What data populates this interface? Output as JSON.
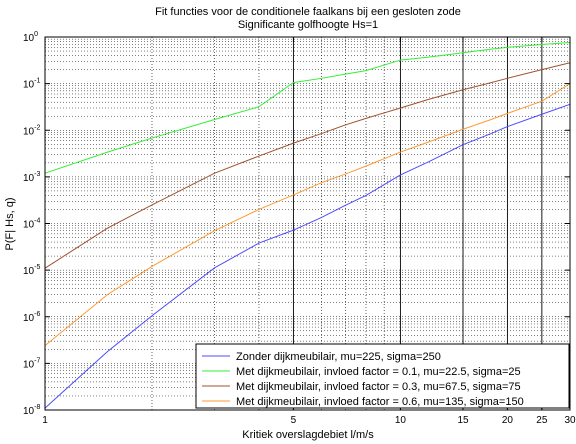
{
  "chart_data": {
    "type": "line",
    "title": "Fit functies voor de conditionele faalkans bij een gesloten zode",
    "subtitle": "Significante golfhoogte Hs=1",
    "xlabel": "Kritiek overslagdebiet l/m/s",
    "ylabel": "P(F| Hs, q)",
    "x_scale": "log",
    "y_scale": "log",
    "xlim": [
      1,
      30
    ],
    "ylim": [
      1e-08,
      1
    ],
    "x_ticks": [
      1,
      5,
      10,
      15,
      20,
      25,
      30
    ],
    "x_tick_labels": [
      "1",
      "5",
      "10",
      "15",
      "20",
      "25",
      "30"
    ],
    "y_ticks": [
      1e-08,
      1e-07,
      1e-06,
      1e-05,
      0.0001,
      0.001,
      0.01,
      0.1,
      1
    ],
    "y_tick_labels": [
      {
        "base": "10",
        "exp": "-8"
      },
      {
        "base": "10",
        "exp": "-7"
      },
      {
        "base": "10",
        "exp": "-6"
      },
      {
        "base": "10",
        "exp": "-5"
      },
      {
        "base": "10",
        "exp": "-4"
      },
      {
        "base": "10",
        "exp": "-3"
      },
      {
        "base": "10",
        "exp": "-2"
      },
      {
        "base": "10",
        "exp": "-1"
      },
      {
        "base": "10",
        "exp": "0"
      }
    ],
    "grid": "major solid at 5,10,15,20,25,30; minor dotted",
    "legend_position": "bottom-right",
    "x": [
      1,
      1.5,
      2,
      3,
      4,
      5,
      6,
      7,
      8,
      10,
      12,
      15,
      18,
      20,
      25,
      30
    ],
    "series": [
      {
        "name": "Zonder dijkmeubilair, mu=225, sigma=250",
        "color": "#4c4cff",
        "values": [
          1.1e-08,
          1.8e-07,
          1.05e-06,
          1.12e-05,
          3.8e-05,
          7.2e-05,
          0.000135,
          0.000245,
          0.0004,
          0.0011,
          0.0021,
          0.0049,
          0.0085,
          0.012,
          0.022,
          0.036
        ]
      },
      {
        "name": "Met dijkmeubilair, invloed factor = 0.1, mu=22.5, sigma=25",
        "color": "#33ee33",
        "values": [
          0.0012,
          0.0034,
          0.0068,
          0.017,
          0.032,
          0.105,
          0.13,
          0.16,
          0.19,
          0.32,
          0.37,
          0.46,
          0.55,
          0.6,
          0.69,
          0.76
        ]
      },
      {
        "name": "Met dijkmeubilair, invloed factor = 0.3, mu=67.5, sigma=75",
        "color": "#a0522d",
        "values": [
          1.1e-05,
          8e-05,
          0.00025,
          0.0012,
          0.0028,
          0.0053,
          0.0085,
          0.013,
          0.018,
          0.03,
          0.046,
          0.074,
          0.105,
          0.13,
          0.2,
          0.28
        ]
      },
      {
        "name": "Met dijkmeubilair, invloed factor = 0.6, mu=135, sigma=150",
        "color": "#ff9933",
        "values": [
          2.4e-07,
          3e-06,
          1.2e-05,
          7e-05,
          0.0002,
          0.00041,
          0.00075,
          0.00115,
          0.0017,
          0.0034,
          0.0056,
          0.0105,
          0.017,
          0.023,
          0.042,
          0.1
        ]
      }
    ]
  }
}
